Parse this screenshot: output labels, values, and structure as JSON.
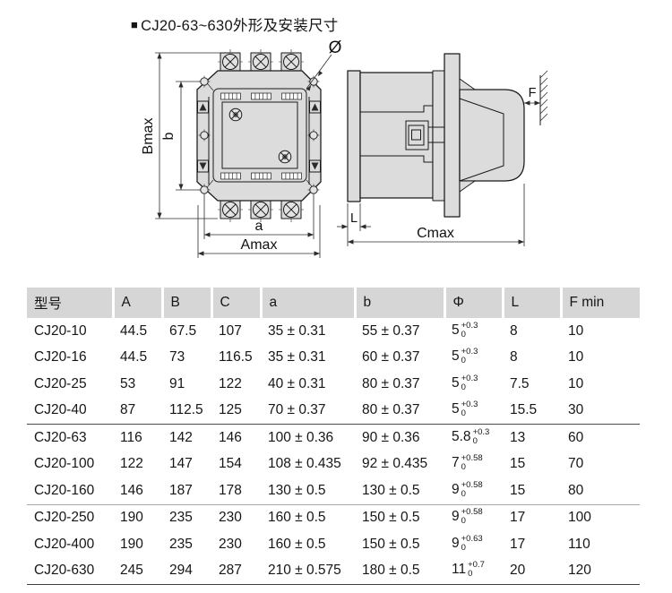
{
  "title": {
    "bullet": "■",
    "text": "CJ20-63~630外形及安装尺寸"
  },
  "drawing": {
    "colors": {
      "fill": "#dcdcdc",
      "line": "#1a1a1a"
    },
    "front_view": {
      "dim_labels": {
        "bmax": "Bmax",
        "b": "b",
        "a": "a",
        "amax": "Amax",
        "hole_diameter": "Ø"
      }
    },
    "side_view": {
      "dim_labels": {
        "l": "L",
        "cmax": "Cmax",
        "f": "F"
      }
    }
  },
  "table": {
    "colors": {
      "header_bg": "#d6d6d6"
    },
    "headers": [
      "型号",
      "A",
      "B",
      "C",
      "a",
      "b",
      "Φ",
      "L",
      "F min"
    ],
    "rows": [
      {
        "model": "CJ20-10",
        "A": "44.5",
        "B": "67.5",
        "C": "107",
        "a": "35 ± 0.31",
        "b": "55 ± 0.37",
        "phi": {
          "base": "5",
          "upper": "+0.3",
          "lower": "0"
        },
        "L": "8",
        "F_min": "10",
        "separator_above": ""
      },
      {
        "model": "CJ20-16",
        "A": "44.5",
        "B": "73",
        "C": "116.5",
        "a": "35 ± 0.31",
        "b": "60 ± 0.37",
        "phi": {
          "base": "5",
          "upper": "+0.3",
          "lower": "0"
        },
        "L": "8",
        "F_min": "10",
        "separator_above": ""
      },
      {
        "model": "CJ20-25",
        "A": "53",
        "B": "91",
        "C": "122",
        "a": "40 ± 0.31",
        "b": "80 ± 0.37",
        "phi": {
          "base": "5",
          "upper": "+0.3",
          "lower": "0"
        },
        "L": "7.5",
        "F_min": "10",
        "separator_above": ""
      },
      {
        "model": "CJ20-40",
        "A": "87",
        "B": "112.5",
        "C": "125",
        "a": "70 ± 0.37",
        "b": "80 ± 0.37",
        "phi": {
          "base": "5",
          "upper": "+0.3",
          "lower": "0"
        },
        "L": "15.5",
        "F_min": "30",
        "separator_above": ""
      },
      {
        "model": "CJ20-63",
        "A": "116",
        "B": "142",
        "C": "146",
        "a": "100 ± 0.36",
        "b": "90 ± 0.36",
        "phi": {
          "base": "5.8",
          "upper": "+0.3",
          "lower": "0"
        },
        "L": "13",
        "F_min": "60",
        "separator_above": "dark"
      },
      {
        "model": "CJ20-100",
        "A": "122",
        "B": "147",
        "C": "154",
        "a": "108 ± 0.435",
        "b": "92 ± 0.435",
        "phi": {
          "base": "7",
          "upper": "+0.58",
          "lower": "0"
        },
        "L": "15",
        "F_min": "70",
        "separator_above": ""
      },
      {
        "model": "CJ20-160",
        "A": "146",
        "B": "187",
        "C": "178",
        "a": "130 ± 0.5",
        "b": "130 ± 0.5",
        "phi": {
          "base": "9",
          "upper": "+0.58",
          "lower": "0"
        },
        "L": "15",
        "F_min": "80",
        "separator_above": ""
      },
      {
        "model": "CJ20-250",
        "A": "190",
        "B": "235",
        "C": "230",
        "a": "160 ± 0.5",
        "b": "150 ± 0.5",
        "phi": {
          "base": "9",
          "upper": "+0.58",
          "lower": "0"
        },
        "L": "17",
        "F_min": "100",
        "separator_above": "light"
      },
      {
        "model": "CJ20-400",
        "A": "190",
        "B": "235",
        "C": "230",
        "a": "160 ± 0.5",
        "b": "150 ± 0.5",
        "phi": {
          "base": "9",
          "upper": "+0.63",
          "lower": "0"
        },
        "L": "17",
        "F_min": "110",
        "separator_above": ""
      },
      {
        "model": "CJ20-630",
        "A": "245",
        "B": "294",
        "C": "287",
        "a": "210 ± 0.575",
        "b": "180 ± 0.5",
        "phi": {
          "base": "11",
          "upper": "+0.7",
          "lower": "0"
        },
        "L": "20",
        "F_min": "120",
        "separator_above": ""
      }
    ]
  }
}
